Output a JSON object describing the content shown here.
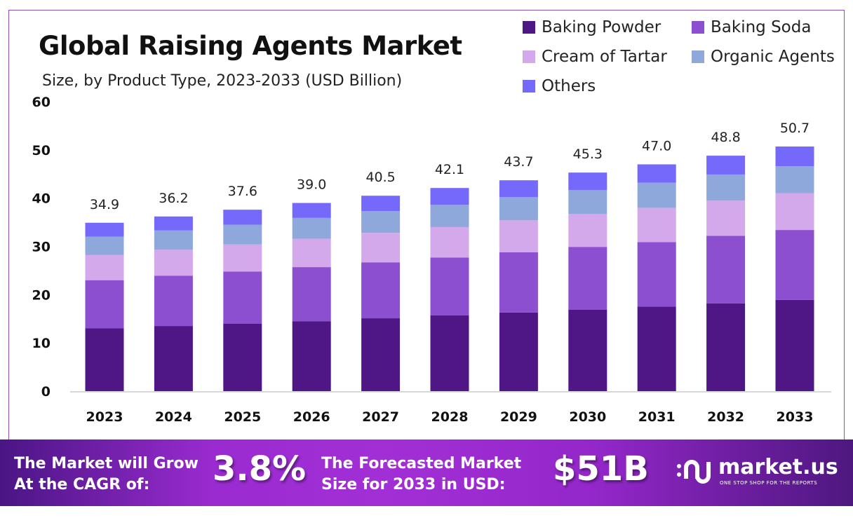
{
  "chart_data": {
    "type": "bar",
    "stacked": true,
    "title": "Global Raising Agents Market",
    "subtitle": "Size, by Product Type, 2023-2033 (USD Billion)",
    "xlabel": "",
    "ylabel": "",
    "ylim": [
      0,
      60
    ],
    "yticks": [
      0,
      10,
      20,
      30,
      40,
      50,
      60
    ],
    "grid": false,
    "legend_position": "top-right",
    "categories": [
      "2023",
      "2024",
      "2025",
      "2026",
      "2027",
      "2028",
      "2029",
      "2030",
      "2031",
      "2032",
      "2033"
    ],
    "totals": [
      "34.9",
      "36.2",
      "37.6",
      "39.0",
      "40.5",
      "42.1",
      "43.7",
      "45.3",
      "47.0",
      "48.8",
      "50.7"
    ],
    "series": [
      {
        "name": "Baking Powder",
        "color": "#4f1785",
        "values": [
          13.0,
          13.5,
          14.0,
          14.5,
          15.1,
          15.7,
          16.3,
          16.9,
          17.5,
          18.2,
          18.9
        ]
      },
      {
        "name": "Baking Soda",
        "color": "#8b4fcf",
        "values": [
          10.0,
          10.4,
          10.8,
          11.2,
          11.6,
          12.0,
          12.5,
          13.0,
          13.4,
          14.0,
          14.5
        ]
      },
      {
        "name": "Cream of Tartar",
        "color": "#d4a9ec",
        "values": [
          5.2,
          5.4,
          5.6,
          5.9,
          6.1,
          6.3,
          6.6,
          6.8,
          7.1,
          7.3,
          7.6
        ]
      },
      {
        "name": "Organic Agents",
        "color": "#8fa8dc",
        "values": [
          3.8,
          4.0,
          4.1,
          4.3,
          4.5,
          4.6,
          4.8,
          5.0,
          5.2,
          5.4,
          5.6
        ]
      },
      {
        "name": "Others",
        "color": "#7469fb",
        "values": [
          2.9,
          2.9,
          3.1,
          3.1,
          3.2,
          3.5,
          3.5,
          3.6,
          3.8,
          3.9,
          4.1
        ]
      }
    ]
  },
  "banner": {
    "cagr_label_1": "The Market will Grow",
    "cagr_label_2": "At the CAGR of:",
    "cagr_value": "3.8%",
    "forecast_label_1": "The Forecasted Market",
    "forecast_label_2": "Size for 2033 in USD:",
    "forecast_value": "$51B",
    "logo_name": "market.us",
    "logo_tagline": "ONE STOP SHOP FOR THE REPORTS"
  }
}
